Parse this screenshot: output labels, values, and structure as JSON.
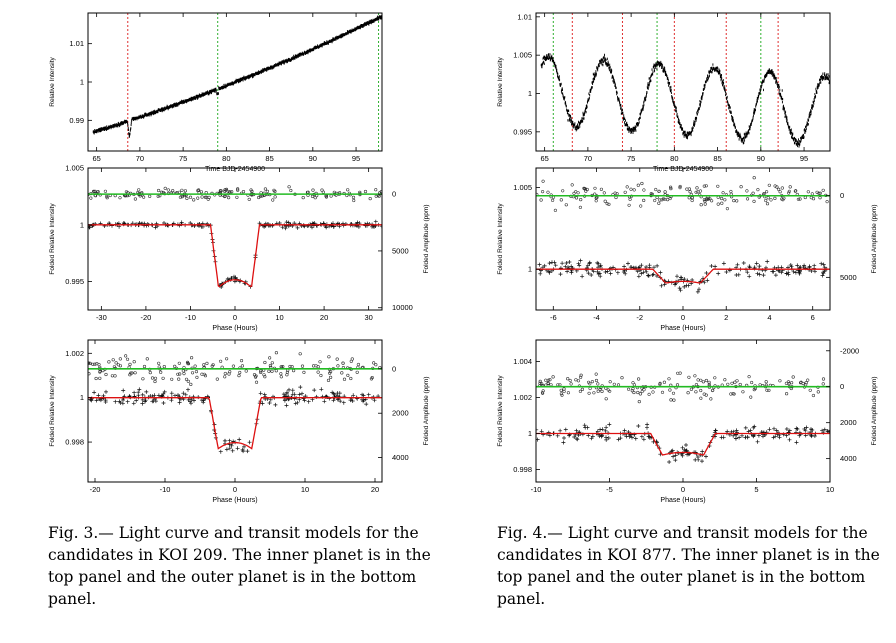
{
  "figures": [
    {
      "id": "fig3",
      "caption_lines": [
        "Fig.  3.— Light curve and transit models for the",
        "candidates in KOI 209. The inner planet is in the",
        "top panel and the outer planet is in the bottom",
        "panel."
      ],
      "panels": [
        {
          "kind": "lightcurve",
          "ylabel": "Relative Intensity",
          "xlabel": "Time BJD-2454900",
          "xlim": [
            64,
            98
          ],
          "ylim": [
            0.982,
            1.018
          ],
          "xticks": [
            65,
            70,
            75,
            80,
            85,
            90,
            95
          ],
          "yticks": [
            0.99,
            1,
            1.01
          ],
          "ytick_labels": [
            "0.99",
            "1",
            "1.01"
          ],
          "vlines": [
            {
              "x": 68.6,
              "color": "#e03030"
            },
            {
              "x": 79.0,
              "color": "#30b030"
            },
            {
              "x": 97.6,
              "color": "#30b030"
            }
          ]
        },
        {
          "kind": "folded",
          "ylabel": "Folded Relative Intensity",
          "y2label": "Folded Amplitude (ppm)",
          "xlabel": "Phase (Hours)",
          "xlim": [
            -33,
            33
          ],
          "ylim": [
            0.9925,
            1.005
          ],
          "xticks": [
            -30,
            -20,
            -10,
            0,
            10,
            20,
            30
          ],
          "yticks": [
            0.995,
            1,
            1.005
          ],
          "ytick_labels": [
            "0.995",
            "1",
            "1.005"
          ],
          "y2ticks": [
            0,
            5000,
            10000
          ],
          "green_level": 1.0027,
          "transit": {
            "depth": 0.0055,
            "half": 5.5,
            "ingress": 1.8
          }
        },
        {
          "kind": "folded",
          "ylabel": "Folded Relative Intensity",
          "y2label": "Folded Amplitude (ppm)",
          "xlabel": "Phase (Hours)",
          "xlim": [
            -21,
            21
          ],
          "ylim": [
            0.9962,
            1.0026
          ],
          "xticks": [
            -20,
            -10,
            0,
            10,
            20
          ],
          "yticks": [
            0.998,
            1,
            1.002
          ],
          "ytick_labels": [
            "0.998",
            "1",
            "1.002"
          ],
          "y2ticks": [
            0,
            2000,
            4000
          ],
          "green_level": 1.0013,
          "transit": {
            "depth": 0.0023,
            "half": 3.7,
            "ingress": 1.3
          }
        }
      ]
    },
    {
      "id": "fig4",
      "caption_lines": [
        "Fig.  4.— Light curve and transit models for the",
        "candidates in KOI 877. The inner planet is in the",
        "top panel and the outer planet is in the bottom",
        "panel."
      ],
      "panels": [
        {
          "kind": "lightcurve",
          "ylabel": "Relative Intensity",
          "xlabel": "Time BJD-2454900",
          "xlim": [
            64,
            98
          ],
          "ylim": [
            0.9925,
            1.0105
          ],
          "xticks": [
            65,
            70,
            75,
            80,
            85,
            90,
            95
          ],
          "yticks": [
            0.995,
            1,
            1.005,
            1.01
          ],
          "ytick_labels": [
            "0.995",
            "1",
            "1.005",
            "1.01"
          ],
          "vlines": [
            {
              "x": 66.0,
              "color": "#30b030"
            },
            {
              "x": 68.2,
              "color": "#e03030"
            },
            {
              "x": 74.0,
              "color": "#e03030"
            },
            {
              "x": 78.0,
              "color": "#30b030"
            },
            {
              "x": 80.0,
              "color": "#e03030"
            },
            {
              "x": 86.0,
              "color": "#e03030"
            },
            {
              "x": 90.0,
              "color": "#30b030"
            },
            {
              "x": 92.0,
              "color": "#e03030"
            }
          ]
        },
        {
          "kind": "folded",
          "ylabel": "Folded Relative Intensity",
          "y2label": "Folded Amplitude (ppm)",
          "xlabel": "Phase (Hours)",
          "xlim": [
            -6.8,
            6.8
          ],
          "ylim": [
            0.9975,
            1.0062
          ],
          "xticks": [
            -6,
            -4,
            -2,
            0,
            2,
            4,
            6
          ],
          "yticks": [
            1,
            1.005
          ],
          "ytick_labels": [
            "1",
            "1.005"
          ],
          "y2ticks": [
            0,
            5000
          ],
          "green_level": 1.0045,
          "transit": {
            "depth": 0.00085,
            "half": 1.4,
            "ingress": 0.6
          }
        },
        {
          "kind": "folded",
          "ylabel": "Folded Relative Intensity",
          "y2label": "Folded Amplitude (ppm)",
          "xlabel": "Phase (Hours)",
          "xlim": [
            -10,
            10
          ],
          "ylim": [
            0.9973,
            1.0052
          ],
          "xticks": [
            -10,
            -5,
            0,
            5,
            10
          ],
          "yticks": [
            0.998,
            1,
            1.002,
            1.004
          ],
          "ytick_labels": [
            "0.998",
            "1",
            "1.002",
            "1.004"
          ],
          "y2ticks": [
            -2000,
            0,
            2000,
            4000
          ],
          "green_level": 1.0026,
          "transit": {
            "depth": 0.0012,
            "half": 2.2,
            "ingress": 0.8
          }
        }
      ]
    }
  ]
}
